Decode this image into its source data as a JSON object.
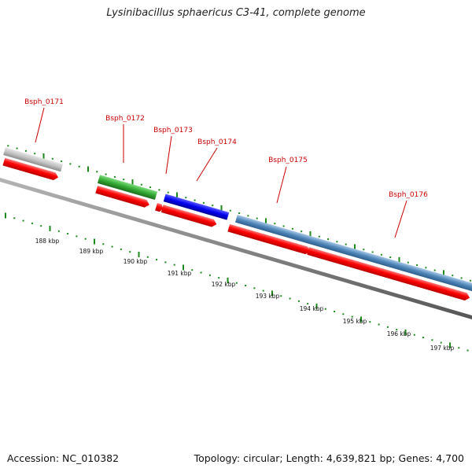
{
  "title": "Lysinibacillus sphaericus C3-41, complete genome",
  "footer": {
    "accession": "Accession: NC_010382",
    "summary": "Topology: circular; Length: 4,639,821 bp; Genes: 4,700"
  },
  "colors": {
    "gene_label": "#cc0000",
    "tick": "#1a8a1a",
    "backbone": "#777777",
    "cds_strand": "#ff0000",
    "gray_feature": "#bdbdbd",
    "green_feature": "#33aa33",
    "blue_feature": "#0000ee",
    "steelblue_feature": "#4f86b8"
  },
  "kbp_labels": [
    "188 kbp",
    "189 kbp",
    "190 kbp",
    "191 kbp",
    "192 kbp",
    "193 kbp",
    "194 kbp",
    "195 kbp",
    "196 kbp",
    "197 kbp"
  ],
  "gene_labels": [
    "Bsph_0171",
    "Bsph_0172",
    "Bsph_0173",
    "Bsph_0174",
    "Bsph_0175",
    "Bsph_0176"
  ]
}
